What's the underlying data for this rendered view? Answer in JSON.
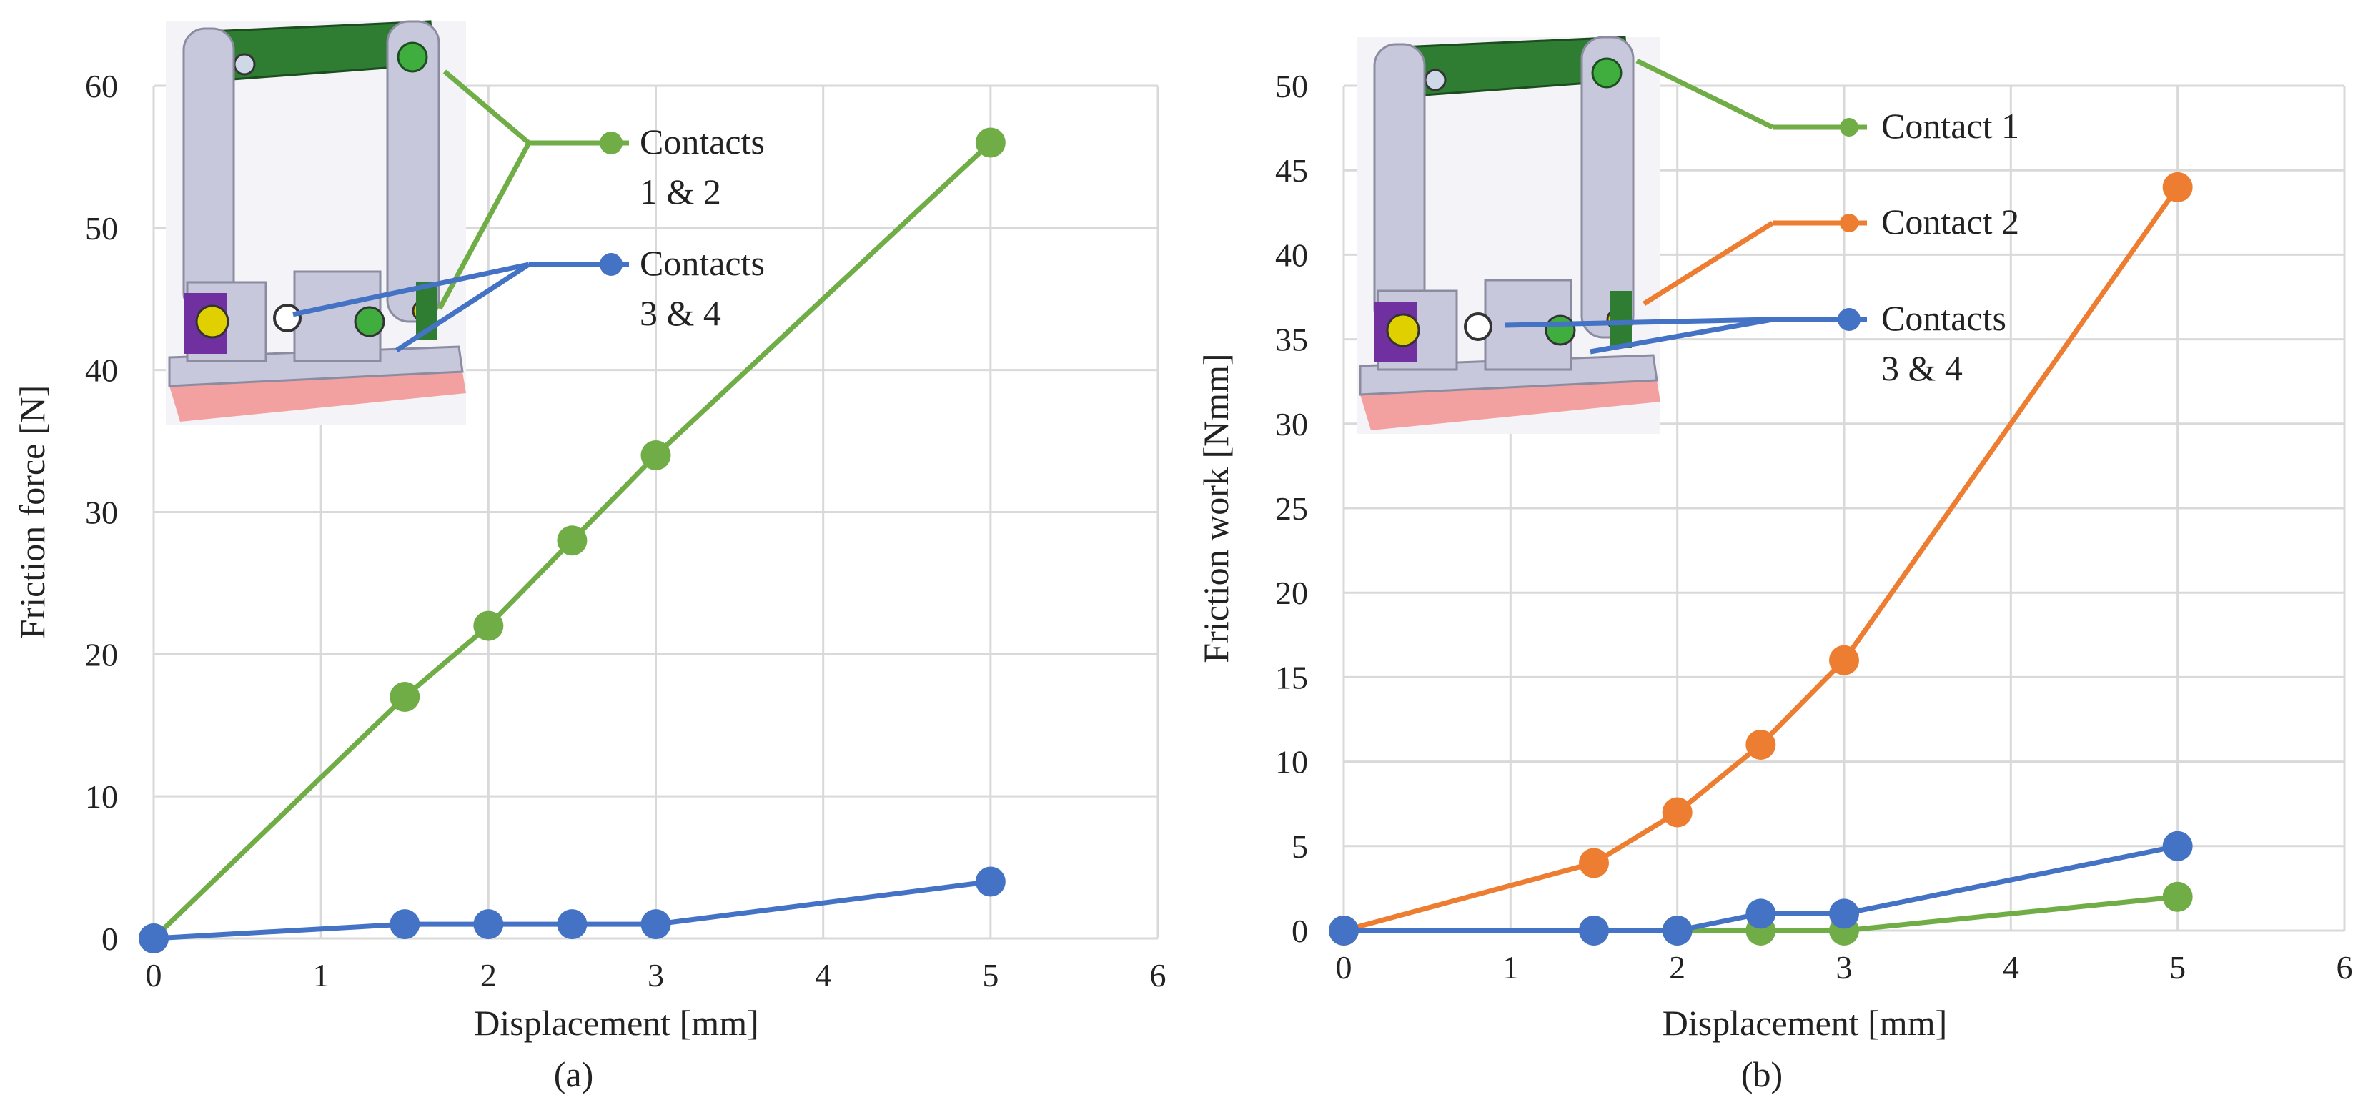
{
  "chart_data": [
    {
      "type": "line",
      "panel_label": "(a)",
      "xlabel": "Displacement [mm]",
      "ylabel": "Friction force [N]",
      "xlim": [
        0,
        6
      ],
      "ylim": [
        0,
        60
      ],
      "xticks": [
        0,
        1,
        2,
        3,
        4,
        5,
        6
      ],
      "yticks": [
        0,
        10,
        20,
        30,
        40,
        50,
        60
      ],
      "grid": true,
      "series": [
        {
          "name": "Contacts 1 & 2",
          "legend_lines": [
            "Contacts",
            "1 & 2"
          ],
          "color": "#70ad47",
          "x": [
            0,
            1.5,
            2,
            2.5,
            3,
            5
          ],
          "y": [
            0,
            17,
            22,
            28,
            34,
            56
          ]
        },
        {
          "name": "Contacts 3 & 4",
          "legend_lines": [
            "Contacts",
            "3 & 4"
          ],
          "color": "#4472c4",
          "x": [
            0,
            1.5,
            2,
            2.5,
            3,
            5
          ],
          "y": [
            0,
            1,
            1,
            1,
            1,
            4
          ]
        }
      ]
    },
    {
      "type": "line",
      "panel_label": "(b)",
      "xlabel": "Displacement [mm]",
      "ylabel": "Friction work [Nmm]",
      "xlim": [
        0,
        6
      ],
      "ylim": [
        0,
        50
      ],
      "xticks": [
        0,
        1,
        2,
        3,
        4,
        5,
        6
      ],
      "yticks": [
        0,
        5,
        10,
        15,
        20,
        25,
        30,
        35,
        40,
        45,
        50
      ],
      "grid": true,
      "series": [
        {
          "name": "Contact 1",
          "legend_lines": [
            "Contact 1"
          ],
          "color": "#70ad47",
          "x": [
            0,
            1.5,
            2,
            2.5,
            3,
            5
          ],
          "y": [
            0,
            0,
            0,
            0,
            0,
            2
          ]
        },
        {
          "name": "Contact 2",
          "legend_lines": [
            "Contact 2"
          ],
          "color": "#ed7d31",
          "x": [
            0,
            1.5,
            2,
            2.5,
            3,
            5
          ],
          "y": [
            0,
            4,
            7,
            11,
            16,
            44
          ]
        },
        {
          "name": "Contacts 3 & 4",
          "legend_lines": [
            "Contacts",
            "3 & 4"
          ],
          "color": "#4472c4",
          "x": [
            0,
            1.5,
            2,
            2.5,
            3,
            5
          ],
          "y": [
            0,
            0,
            0,
            1,
            1,
            5
          ]
        }
      ]
    }
  ],
  "colors": {
    "grid": "#d9d9d9",
    "text": "#222222",
    "frame_purple": "#7030a0",
    "frame_grey": "#c8c8dc",
    "frame_green": "#2e7d32",
    "base_pink": "#f2a0a0"
  },
  "icons": {
    "inset": "mechanism-3d-render-icon"
  }
}
